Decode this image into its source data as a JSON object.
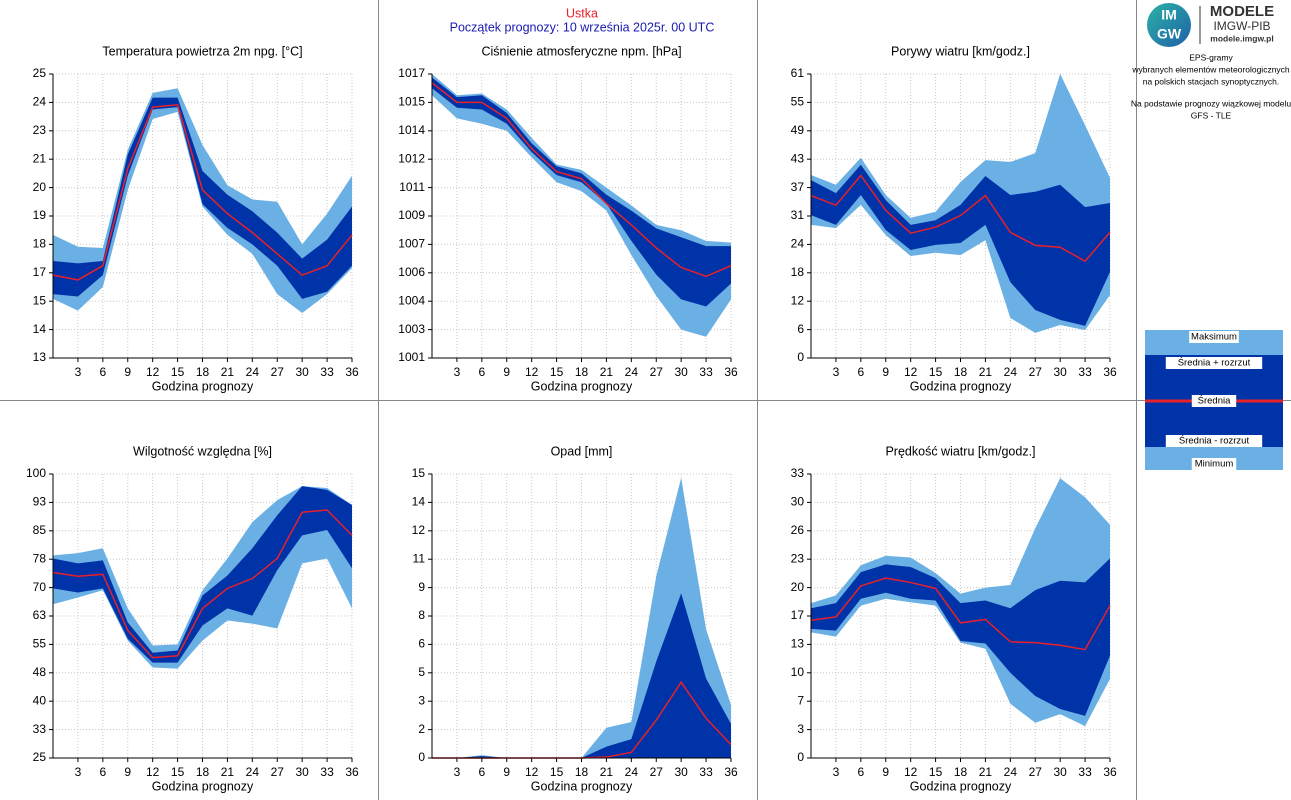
{
  "header": {
    "station": "Ustka",
    "forecast_start": "Początek prognozy: 10 września 2025r. 00 UTC"
  },
  "logo": {
    "top": "IM",
    "bottom": "GW",
    "brand": "MODELE",
    "org": "IMGW-PIB",
    "url": "modele.imgw.pl"
  },
  "description": [
    "EPS-gramy",
    "wybranych elementów meteorologicznych",
    "na polskich stacjach  synoptycznych.",
    "Na podstawie prognozy wiązkowej modelu",
    "GFS - TLE"
  ],
  "legend": {
    "items": [
      {
        "name": "Maksimum",
        "color": "#6ab0e4"
      },
      {
        "name": "Średnia + rozrzut",
        "color": "#0033a8"
      },
      {
        "name": "Średnia",
        "color": "#e8202a"
      },
      {
        "name": "Średnia - rozrzut",
        "color": "#0033a8"
      },
      {
        "name": "Minimum",
        "color": "#6ab0e4"
      }
    ]
  },
  "chart_data": [
    {
      "type": "area",
      "title": "Temperatura powietrza 2m npg. [°C]",
      "x_label": "Godzina prognozy",
      "x": [
        0,
        3,
        6,
        9,
        12,
        15,
        18,
        21,
        24,
        27,
        30,
        33,
        36
      ],
      "xlim": [
        0,
        36
      ],
      "xticks": [
        3,
        6,
        9,
        12,
        15,
        18,
        21,
        24,
        27,
        30,
        33,
        36
      ],
      "ylim": [
        13,
        25
      ],
      "grid": true,
      "yticks": [
        13,
        {
          "value": 14.2,
          "label": "14"
        },
        {
          "value": 15.4,
          "label": "15"
        },
        {
          "value": 16.6,
          "label": "17"
        },
        {
          "value": 17.8,
          "label": "18"
        },
        19,
        {
          "value": 20.2,
          "label": "20"
        },
        {
          "value": 21.4,
          "label": "21"
        },
        {
          "value": 22.6,
          "label": "23"
        },
        {
          "value": 23.8,
          "label": "24"
        },
        25
      ],
      "series": [
        {
          "values": [
            18.2,
            17.7,
            17.65,
            21.8,
            24.2,
            24.4,
            22.0,
            20.3,
            19.7,
            19.6,
            17.8,
            19.1,
            20.7
          ]
        },
        {
          "values": [
            17.1,
            17.0,
            17.1,
            21.6,
            24.0,
            24.0,
            20.9,
            19.9,
            19.2,
            18.3,
            17.2,
            18.0,
            19.4
          ]
        },
        {
          "values": [
            16.5,
            16.3,
            16.9,
            21.0,
            23.6,
            23.7,
            20.1,
            19.1,
            18.3,
            17.4,
            16.5,
            16.9,
            18.2
          ]
        },
        {
          "values": [
            15.7,
            15.6,
            16.5,
            20.7,
            23.5,
            23.6,
            19.5,
            18.5,
            17.8,
            16.9,
            15.5,
            15.8,
            16.9
          ]
        },
        {
          "values": [
            15.5,
            15.0,
            16.0,
            20.1,
            23.1,
            23.4,
            19.4,
            18.2,
            17.4,
            15.7,
            14.9,
            15.7,
            16.8
          ]
        }
      ]
    },
    {
      "type": "area",
      "title": "Ciśnienie atmosferyczne npm. [hPa]",
      "x_label": "Godzina prognozy",
      "x": [
        0,
        3,
        6,
        9,
        12,
        15,
        18,
        21,
        24,
        27,
        30,
        33,
        36
      ],
      "xlim": [
        0,
        36
      ],
      "xticks": [
        3,
        6,
        9,
        12,
        15,
        18,
        21,
        24,
        27,
        30,
        33,
        36
      ],
      "ylim": [
        1001,
        1017
      ],
      "grid": true,
      "yticks": [
        1001,
        {
          "value": 1002.6,
          "label": "1003"
        },
        {
          "value": 1004.2,
          "label": "1004"
        },
        {
          "value": 1005.8,
          "label": "1006"
        },
        {
          "value": 1007.4,
          "label": "1007"
        },
        1009,
        {
          "value": 1010.6,
          "label": "1011"
        },
        {
          "value": 1012.2,
          "label": "1012"
        },
        {
          "value": 1013.8,
          "label": "1014"
        },
        {
          "value": 1015.4,
          "label": "1015"
        },
        1017
      ],
      "series": [
        {
          "values": [
            1017,
            1015.8,
            1015.9,
            1015.0,
            1013.4,
            1011.9,
            1011.6,
            1010.6,
            1009.6,
            1008.5,
            1008.2,
            1007.6,
            1007.5
          ]
        },
        {
          "values": [
            1016.8,
            1015.7,
            1015.8,
            1014.8,
            1013.1,
            1011.8,
            1011.4,
            1010.2,
            1009.3,
            1008.3,
            1007.8,
            1007.3,
            1007.3
          ]
        },
        {
          "values": [
            1016.5,
            1015.4,
            1015.4,
            1014.5,
            1012.8,
            1011.5,
            1011.1,
            1009.7,
            1008.5,
            1007.2,
            1006.1,
            1005.6,
            1006.2
          ]
        },
        {
          "values": [
            1016.2,
            1015.1,
            1015.0,
            1014.2,
            1012.6,
            1011.3,
            1010.9,
            1009.7,
            1007.6,
            1005.7,
            1004.3,
            1003.9,
            1005.2
          ]
        },
        {
          "values": [
            1015.8,
            1014.5,
            1014.2,
            1013.8,
            1012.3,
            1010.9,
            1010.4,
            1009.3,
            1006.8,
            1004.5,
            1002.6,
            1002.2,
            1004.3
          ]
        }
      ]
    },
    {
      "type": "area",
      "title": "Porywy wiatru [km/godz.]",
      "x_label": "Godzina prognozy",
      "x": [
        0,
        3,
        6,
        9,
        12,
        15,
        18,
        21,
        24,
        27,
        30,
        33,
        36
      ],
      "xlim": [
        0,
        36
      ],
      "xticks": [
        3,
        6,
        9,
        12,
        15,
        18,
        21,
        24,
        27,
        30,
        33,
        36
      ],
      "ylim": [
        0,
        61
      ],
      "grid": true,
      "yticks": [
        0,
        {
          "value": 6.1,
          "label": "6"
        },
        {
          "value": 12.2,
          "label": "12"
        },
        {
          "value": 18.3,
          "label": "18"
        },
        {
          "value": 24.4,
          "label": "24"
        },
        {
          "value": 30.5,
          "label": "31"
        },
        {
          "value": 36.6,
          "label": "37"
        },
        {
          "value": 42.7,
          "label": "43"
        },
        {
          "value": 48.8,
          "label": "49"
        },
        {
          "value": 54.9,
          "label": "55"
        },
        61
      ],
      "series": [
        {
          "values": [
            39.3,
            37.2,
            43.0,
            35.0,
            30.1,
            31.4,
            37.8,
            42.5,
            42.1,
            44.0,
            61.0,
            50.0,
            38.7
          ]
        },
        {
          "values": [
            38.2,
            35.4,
            41.5,
            33.9,
            28.6,
            29.6,
            32.9,
            39.1,
            35.0,
            35.7,
            37.2,
            32.4,
            33.3
          ]
        },
        {
          "values": [
            34.9,
            32.8,
            39.2,
            31.7,
            26.8,
            28.1,
            30.6,
            34.9,
            27.0,
            24.2,
            23.8,
            20.8,
            27.0
          ]
        },
        {
          "values": [
            30.7,
            28.6,
            35.0,
            27.5,
            23.2,
            24.3,
            24.7,
            28.6,
            16.3,
            10.3,
            8.2,
            6.9,
            18.5
          ]
        },
        {
          "values": [
            28.6,
            27.9,
            32.9,
            26.4,
            21.9,
            22.6,
            22.1,
            25.3,
            8.6,
            5.4,
            7.1,
            6.0,
            13.5
          ]
        }
      ]
    },
    {
      "type": "area",
      "title": "Wilgotność względna [%]",
      "x_label": "Godzina prognozy",
      "x": [
        0,
        3,
        6,
        9,
        12,
        15,
        18,
        21,
        24,
        27,
        30,
        33,
        36
      ],
      "xlim": [
        0,
        36
      ],
      "xticks": [
        3,
        6,
        9,
        12,
        15,
        18,
        21,
        24,
        27,
        30,
        33,
        36
      ],
      "ylim": [
        25,
        100
      ],
      "grid": true,
      "yticks": [
        25,
        {
          "value": 32.5,
          "label": "33"
        },
        40,
        {
          "value": 47.5,
          "label": "48"
        },
        55,
        {
          "value": 62.5,
          "label": "63"
        },
        70,
        {
          "value": 77.5,
          "label": "78"
        },
        85,
        {
          "value": 92.5,
          "label": "93"
        },
        100
      ],
      "series": [
        {
          "values": [
            78.5,
            79.1,
            80.4,
            64.5,
            54.7,
            55.0,
            69.3,
            77.7,
            87.3,
            93.1,
            96.8,
            96.3,
            91.8
          ]
        },
        {
          "values": [
            77.7,
            76.4,
            77.2,
            60.8,
            52.8,
            53.4,
            67.9,
            73.2,
            80.4,
            89.1,
            96.8,
            95.8,
            91.8
          ]
        },
        {
          "values": [
            74.0,
            73.0,
            73.5,
            58.7,
            51.5,
            52.0,
            64.5,
            69.8,
            72.4,
            77.7,
            89.9,
            90.5,
            83.8
          ]
        },
        {
          "values": [
            69.8,
            68.7,
            69.8,
            56.5,
            50.2,
            50.2,
            60.0,
            64.5,
            62.6,
            74.6,
            83.8,
            85.2,
            75.1
          ]
        },
        {
          "values": [
            65.6,
            67.4,
            69.3,
            56.0,
            48.9,
            48.6,
            56.0,
            61.3,
            60.5,
            59.2,
            76.4,
            77.7,
            64.5
          ]
        }
      ]
    },
    {
      "type": "area",
      "title": "Opad [mm]",
      "x_label": "Godzina prognozy",
      "x": [
        0,
        3,
        6,
        9,
        12,
        15,
        18,
        21,
        24,
        27,
        30,
        33,
        36
      ],
      "xlim": [
        0,
        36
      ],
      "xticks": [
        3,
        6,
        9,
        12,
        15,
        18,
        21,
        24,
        27,
        30,
        33,
        36
      ],
      "ylim": [
        0,
        15
      ],
      "grid": true,
      "yticks": [
        0,
        {
          "value": 1.5,
          "label": "2"
        },
        3,
        {
          "value": 4.5,
          "label": "5"
        },
        6,
        {
          "value": 7.5,
          "label": "8"
        },
        9,
        {
          "value": 10.5,
          "label": "11"
        },
        12,
        {
          "value": 13.5,
          "label": "14"
        },
        15
      ],
      "series": [
        {
          "values": [
            0,
            0,
            0.15,
            0,
            0,
            0,
            0,
            1.6,
            1.9,
            9.6,
            14.8,
            6.8,
            2.8
          ]
        },
        {
          "values": [
            0,
            0,
            0.1,
            0,
            0,
            0,
            0,
            0.6,
            1.0,
            5.1,
            8.7,
            4.2,
            1.8
          ]
        },
        {
          "values": [
            0,
            0,
            0,
            0,
            0,
            0,
            0,
            0.05,
            0.3,
            2.0,
            4.0,
            2.1,
            0.7
          ]
        },
        {
          "values": [
            0,
            0,
            0,
            0,
            0,
            0,
            0,
            0,
            0,
            0,
            0,
            0,
            0
          ]
        },
        {
          "values": [
            0,
            0,
            0,
            0,
            0,
            0,
            0,
            0,
            0,
            0,
            0,
            0,
            0
          ]
        }
      ]
    },
    {
      "type": "area",
      "title": "Prędkość wiatru [km/godz.]",
      "x_label": "Godzina prognozy",
      "x": [
        0,
        3,
        6,
        9,
        12,
        15,
        18,
        21,
        24,
        27,
        30,
        33,
        36
      ],
      "xlim": [
        0,
        36
      ],
      "xticks": [
        3,
        6,
        9,
        12,
        15,
        18,
        21,
        24,
        27,
        30,
        33,
        36
      ],
      "ylim": [
        0,
        33
      ],
      "grid": true,
      "yticks": [
        0,
        {
          "value": 3.3,
          "label": "3"
        },
        {
          "value": 6.6,
          "label": "7"
        },
        {
          "value": 9.9,
          "label": "10"
        },
        {
          "value": 13.2,
          "label": "13"
        },
        {
          "value": 16.5,
          "label": "17"
        },
        {
          "value": 19.8,
          "label": "20"
        },
        {
          "value": 23.1,
          "label": "23"
        },
        {
          "value": 26.4,
          "label": "26"
        },
        {
          "value": 29.7,
          "label": "30"
        },
        33
      ],
      "series": [
        {
          "values": [
            18.0,
            18.9,
            22.4,
            23.5,
            23.3,
            21.5,
            19.1,
            19.8,
            20.1,
            26.7,
            32.5,
            30.3,
            27.1
          ]
        },
        {
          "values": [
            17.4,
            18.0,
            21.6,
            22.5,
            22.2,
            20.9,
            18.0,
            18.3,
            17.4,
            19.5,
            20.6,
            20.4,
            23.2
          ]
        },
        {
          "values": [
            16.0,
            16.4,
            20.0,
            20.9,
            20.4,
            19.7,
            15.7,
            16.1,
            13.5,
            13.4,
            13.1,
            12.6,
            17.7
          ]
        },
        {
          "values": [
            15.0,
            14.8,
            18.5,
            19.2,
            18.5,
            18.3,
            13.6,
            13.3,
            9.9,
            7.2,
            5.7,
            4.9,
            11.9
          ]
        },
        {
          "values": [
            14.6,
            14.1,
            17.7,
            18.5,
            18.1,
            17.7,
            13.4,
            12.7,
            6.3,
            4.1,
            5.1,
            3.7,
            9.2
          ]
        }
      ]
    }
  ]
}
